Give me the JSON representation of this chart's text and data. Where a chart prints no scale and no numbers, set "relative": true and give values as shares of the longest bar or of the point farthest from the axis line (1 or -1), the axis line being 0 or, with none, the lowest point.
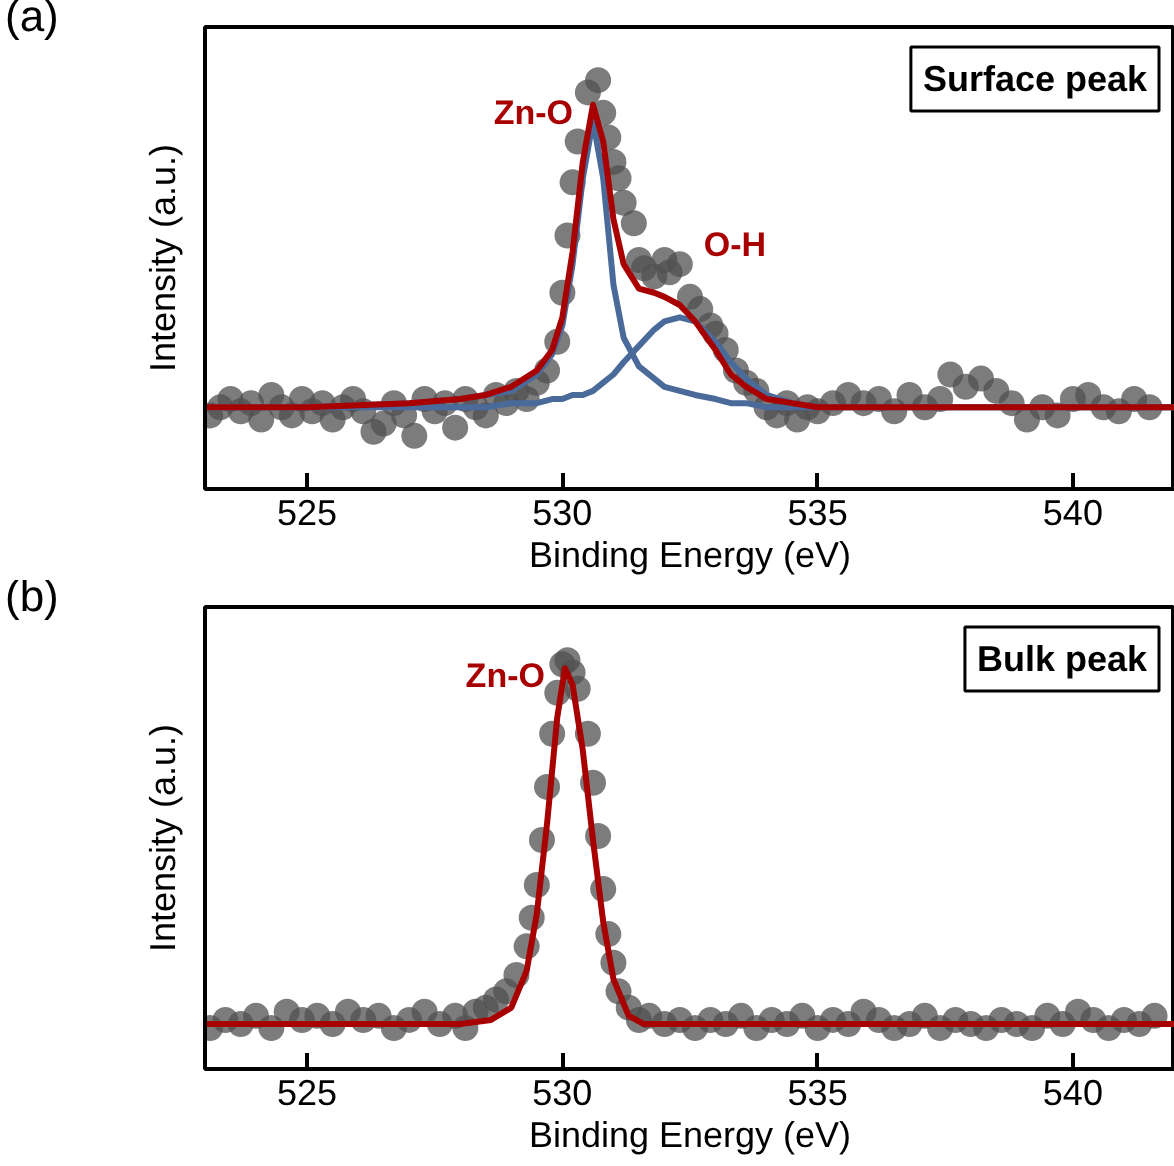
{
  "chart_data": [
    {
      "type": "scatter",
      "relative": true,
      "xlabel": "Binding Energy (eV)",
      "ylabel": "Intensity (a.u.)",
      "xlim": [
        523,
        542
      ],
      "xticks": [
        525,
        530,
        535,
        540
      ],
      "tick_labels": "x",
      "annotations": [
        "(a)",
        "Surface peak",
        {
          "text": "Zn-O",
          "x": 530.6,
          "y": 0.94
        },
        {
          "text": "O-H",
          "x": 532.3,
          "y": 0.45
        }
      ],
      "series": [
        {
          "marker": "circle",
          "color": "#505050",
          "x": [
            523.1,
            523.3,
            523.5,
            523.7,
            523.9,
            524.1,
            524.3,
            524.5,
            524.7,
            524.9,
            525.1,
            525.3,
            525.5,
            525.7,
            525.9,
            526.1,
            526.3,
            526.5,
            526.7,
            526.9,
            527.1,
            527.3,
            527.5,
            527.7,
            527.9,
            528.1,
            528.3,
            528.5,
            528.7,
            528.9,
            529.1,
            529.3,
            529.5,
            529.7,
            529.9,
            530.0,
            530.1,
            530.2,
            530.3,
            530.5,
            530.7,
            530.8,
            530.9,
            531.0,
            531.1,
            531.2,
            531.4,
            531.5,
            531.6,
            531.8,
            532.0,
            532.1,
            532.3,
            532.5,
            532.7,
            532.9,
            533.0,
            533.2,
            533.4,
            533.6,
            533.8,
            534.0,
            534.2,
            534.4,
            534.6,
            534.8,
            535.0,
            535.3,
            535.6,
            535.9,
            536.2,
            536.5,
            536.8,
            537.1,
            537.4,
            537.6,
            537.9,
            538.2,
            538.5,
            538.8,
            539.1,
            539.4,
            539.7,
            540.0,
            540.3,
            540.6,
            540.9,
            541.2,
            541.5
          ],
          "values": [
            0.18,
            0.2,
            0.22,
            0.19,
            0.21,
            0.17,
            0.23,
            0.2,
            0.18,
            0.22,
            0.19,
            0.21,
            0.17,
            0.2,
            0.22,
            0.19,
            0.14,
            0.16,
            0.21,
            0.18,
            0.13,
            0.22,
            0.19,
            0.21,
            0.15,
            0.22,
            0.2,
            0.18,
            0.23,
            0.21,
            0.24,
            0.22,
            0.26,
            0.29,
            0.36,
            0.48,
            0.62,
            0.75,
            0.85,
            0.97,
            1.0,
            0.92,
            0.86,
            0.8,
            0.76,
            0.7,
            0.65,
            0.56,
            0.54,
            0.52,
            0.56,
            0.53,
            0.55,
            0.47,
            0.44,
            0.4,
            0.38,
            0.34,
            0.29,
            0.26,
            0.24,
            0.2,
            0.18,
            0.21,
            0.17,
            0.2,
            0.19,
            0.21,
            0.23,
            0.21,
            0.22,
            0.19,
            0.23,
            0.2,
            0.22,
            0.28,
            0.25,
            0.27,
            0.24,
            0.21,
            0.17,
            0.2,
            0.18,
            0.22,
            0.23,
            0.2,
            0.19,
            0.22,
            0.2
          ]
        },
        {
          "type": "line",
          "color": "#4a6a9a",
          "x": [
            523,
            525,
            527,
            528,
            528.5,
            529,
            529.5,
            529.8,
            530,
            530.2,
            530.4,
            530.6,
            530.8,
            531,
            531.2,
            531.5,
            531.8,
            532,
            532.3,
            532.6,
            533,
            533.3,
            533.6,
            534,
            534.5,
            535,
            536,
            538,
            540,
            542
          ],
          "values": [
            0.2,
            0.2,
            0.21,
            0.22,
            0.23,
            0.24,
            0.28,
            0.33,
            0.4,
            0.55,
            0.76,
            0.9,
            0.76,
            0.5,
            0.37,
            0.3,
            0.27,
            0.25,
            0.24,
            0.23,
            0.22,
            0.21,
            0.21,
            0.2,
            0.2,
            0.2,
            0.2,
            0.2,
            0.2,
            0.2
          ]
        },
        {
          "type": "line",
          "color": "#4a6a9a",
          "x": [
            523,
            525,
            527,
            528,
            528.5,
            529,
            529.5,
            529.8,
            530,
            530.2,
            530.4,
            530.6,
            530.8,
            531,
            531.2,
            531.5,
            531.8,
            532,
            532.3,
            532.6,
            533,
            533.3,
            533.6,
            534,
            534.5,
            535,
            536,
            538,
            540,
            542
          ],
          "values": [
            0.2,
            0.2,
            0.2,
            0.2,
            0.2,
            0.21,
            0.21,
            0.22,
            0.22,
            0.23,
            0.23,
            0.24,
            0.26,
            0.28,
            0.31,
            0.35,
            0.39,
            0.41,
            0.42,
            0.41,
            0.36,
            0.31,
            0.27,
            0.23,
            0.21,
            0.2,
            0.2,
            0.2,
            0.2,
            0.2
          ]
        },
        {
          "type": "line",
          "color": "#a80000",
          "x": [
            523,
            525,
            527,
            528,
            528.5,
            529,
            529.5,
            529.8,
            530,
            530.2,
            530.4,
            530.6,
            530.8,
            531,
            531.2,
            531.5,
            531.8,
            532,
            532.3,
            532.6,
            533,
            533.3,
            533.6,
            534,
            534.5,
            535,
            536,
            538,
            540,
            542
          ],
          "values": [
            0.2,
            0.2,
            0.21,
            0.22,
            0.23,
            0.25,
            0.29,
            0.34,
            0.42,
            0.58,
            0.8,
            0.94,
            0.85,
            0.66,
            0.55,
            0.49,
            0.48,
            0.47,
            0.45,
            0.41,
            0.34,
            0.28,
            0.25,
            0.22,
            0.21,
            0.2,
            0.2,
            0.2,
            0.2,
            0.2
          ]
        }
      ]
    },
    {
      "type": "scatter",
      "relative": true,
      "xlabel": "Binding Energy (eV)",
      "ylabel": "Intensity (a.u.)",
      "xlim": [
        523,
        542
      ],
      "xticks": [
        525,
        530,
        535,
        540
      ],
      "tick_labels": "x",
      "annotations": [
        "(b)",
        "Bulk peak",
        {
          "text": "Zn-O",
          "x": 530.05,
          "y": 0.98
        }
      ],
      "series": [
        {
          "marker": "circle",
          "color": "#505050",
          "x": [
            523.1,
            523.4,
            523.7,
            524.0,
            524.3,
            524.6,
            524.9,
            525.2,
            525.5,
            525.8,
            526.1,
            526.4,
            526.7,
            527.0,
            527.3,
            527.6,
            527.9,
            528.1,
            528.3,
            528.5,
            528.7,
            528.9,
            529.1,
            529.3,
            529.4,
            529.5,
            529.6,
            529.7,
            529.8,
            529.9,
            530.0,
            530.1,
            530.2,
            530.3,
            530.5,
            530.6,
            530.7,
            530.8,
            530.9,
            531.0,
            531.1,
            531.3,
            531.5,
            531.7,
            532.0,
            532.3,
            532.6,
            532.9,
            533.2,
            533.5,
            533.8,
            534.1,
            534.4,
            534.7,
            535.0,
            535.3,
            535.6,
            535.9,
            536.2,
            536.5,
            536.8,
            537.1,
            537.4,
            537.7,
            538.0,
            538.3,
            538.6,
            538.9,
            539.2,
            539.5,
            539.8,
            540.1,
            540.4,
            540.7,
            541.0,
            541.3,
            541.6
          ],
          "values": [
            0.1,
            0.12,
            0.11,
            0.13,
            0.1,
            0.14,
            0.12,
            0.13,
            0.11,
            0.14,
            0.12,
            0.13,
            0.1,
            0.12,
            0.14,
            0.11,
            0.13,
            0.1,
            0.14,
            0.15,
            0.17,
            0.19,
            0.23,
            0.3,
            0.37,
            0.45,
            0.56,
            0.69,
            0.82,
            0.92,
            0.99,
            1.0,
            0.97,
            0.93,
            0.82,
            0.7,
            0.57,
            0.44,
            0.33,
            0.26,
            0.19,
            0.15,
            0.12,
            0.13,
            0.11,
            0.12,
            0.1,
            0.12,
            0.11,
            0.13,
            0.1,
            0.12,
            0.11,
            0.13,
            0.1,
            0.12,
            0.11,
            0.14,
            0.12,
            0.1,
            0.11,
            0.13,
            0.1,
            0.12,
            0.11,
            0.1,
            0.12,
            0.11,
            0.1,
            0.13,
            0.11,
            0.14,
            0.12,
            0.1,
            0.12,
            0.11,
            0.13
          ]
        },
        {
          "type": "line",
          "color": "#a80000",
          "x": [
            523,
            526,
            528,
            528.6,
            529,
            529.3,
            529.5,
            529.7,
            529.9,
            530.05,
            530.2,
            530.4,
            530.6,
            530.8,
            531,
            531.3,
            531.6,
            532,
            535,
            542
          ],
          "values": [
            0.11,
            0.11,
            0.11,
            0.12,
            0.15,
            0.24,
            0.38,
            0.6,
            0.86,
            0.98,
            0.94,
            0.78,
            0.56,
            0.36,
            0.22,
            0.13,
            0.11,
            0.11,
            0.11,
            0.11
          ]
        }
      ]
    }
  ]
}
